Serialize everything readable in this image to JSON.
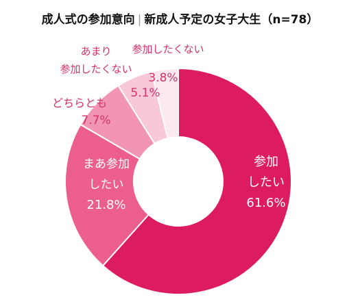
{
  "title_left": "成人式の参加意向",
  "title_sep": "|",
  "title_right": "新成人予定の女子大生（n=78）",
  "chart_data": {
    "type": "pie",
    "donut": true,
    "categories": [
      "参加したい",
      "まあ参加したい",
      "どちらとも",
      "あまり参加したくない",
      "参加したくない"
    ],
    "values": [
      61.6,
      21.8,
      7.7,
      5.1,
      3.8
    ],
    "value_labels": [
      "61.6%",
      "21.8%",
      "7.7%",
      "5.1%",
      "3.8%"
    ],
    "label_lines": [
      [
        "参加",
        "したい"
      ],
      [
        "まあ参加",
        "したい"
      ],
      [
        "どちらとも"
      ],
      [
        "あまり",
        "参加したくない"
      ],
      [
        "参加したくない"
      ]
    ],
    "colors": [
      "#dd1b60",
      "#ec5f8c",
      "#f295b5",
      "#f8c7d8",
      "#fce8ee"
    ],
    "label_colors": [
      "#ffffff",
      "#ffffff",
      "#d4306b",
      "#d4306b",
      "#d4306b"
    ],
    "start_angle_deg": 0,
    "direction": "clockwise"
  }
}
